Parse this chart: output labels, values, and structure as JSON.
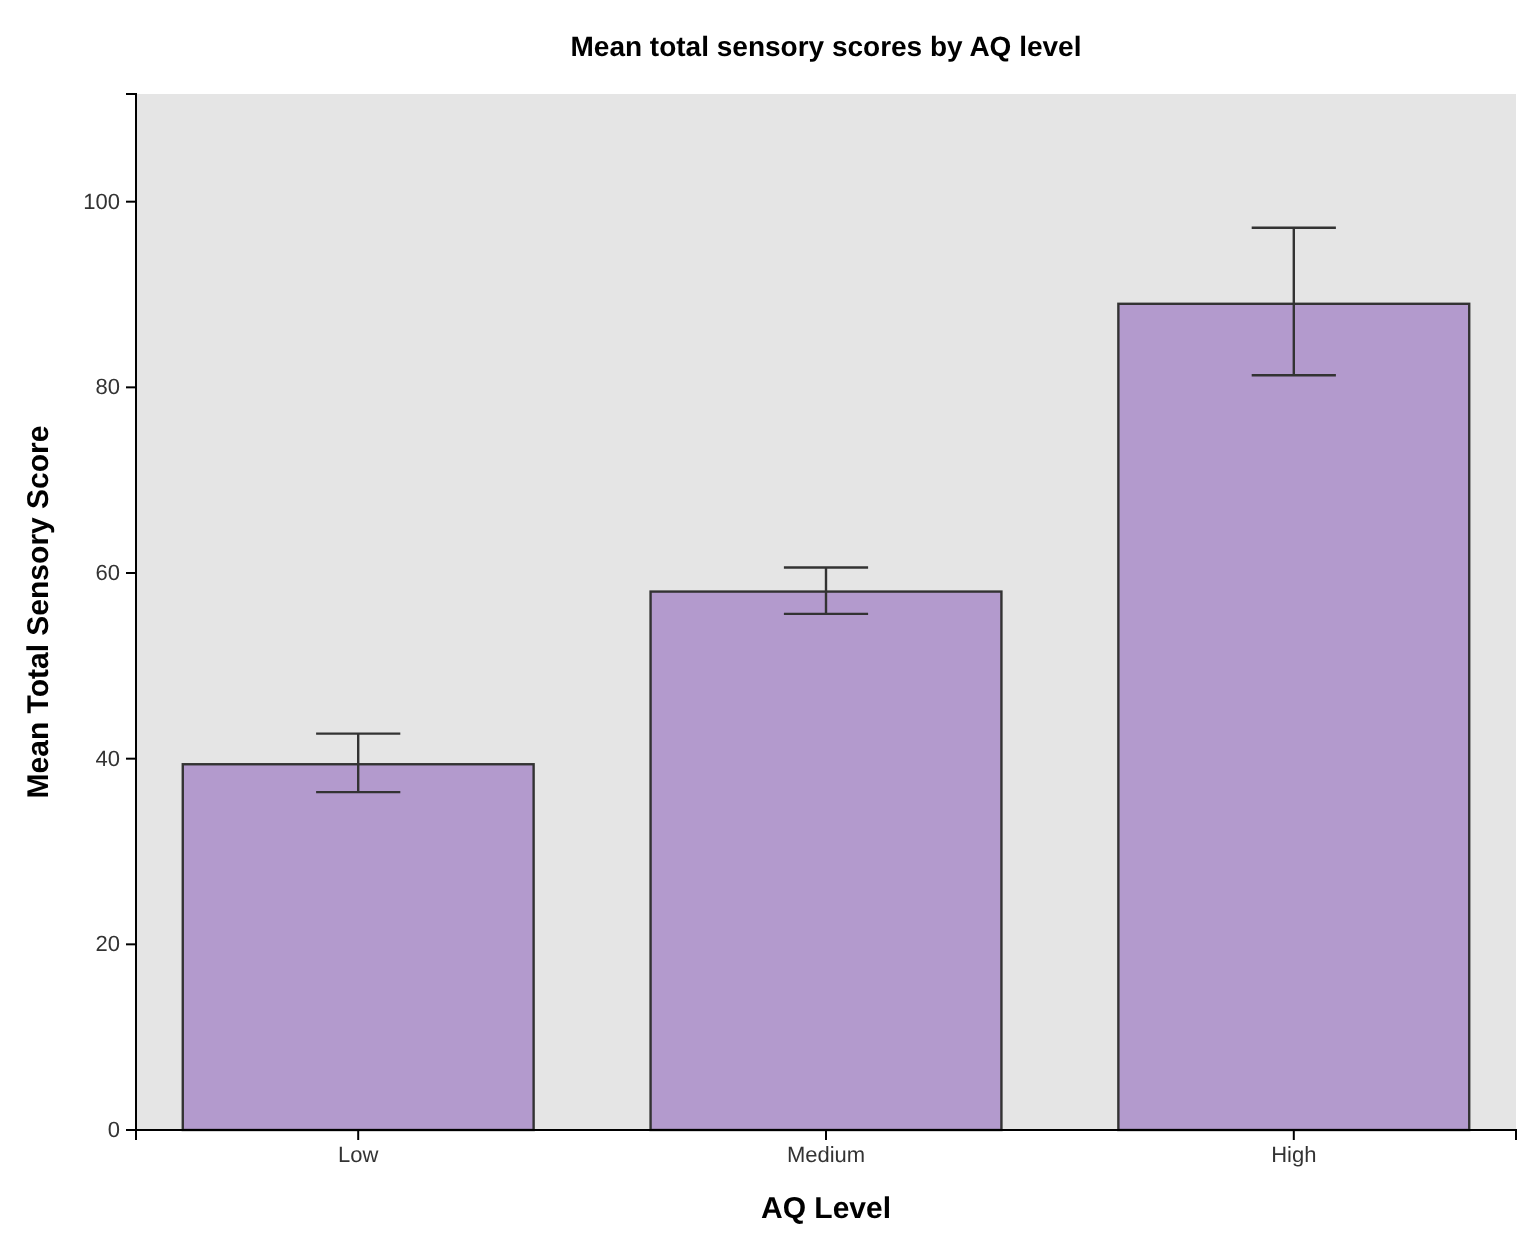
{
  "chart_data": {
    "type": "bar",
    "title": "Mean total sensory scores by AQ level",
    "xlabel": "AQ Level",
    "ylabel": "Mean Total Sensory Score",
    "categories": [
      "Low",
      "Medium",
      "High"
    ],
    "values": [
      39.4,
      58.0,
      89.0
    ],
    "errors": [
      [
        36.4,
        42.7
      ],
      [
        55.6,
        60.6
      ],
      [
        81.3,
        97.2
      ]
    ],
    "color": "#b39acd",
    "ylim": [
      0,
      111.6
    ],
    "yticks": [
      0,
      20,
      40,
      60,
      80,
      100
    ],
    "grid": false
  }
}
